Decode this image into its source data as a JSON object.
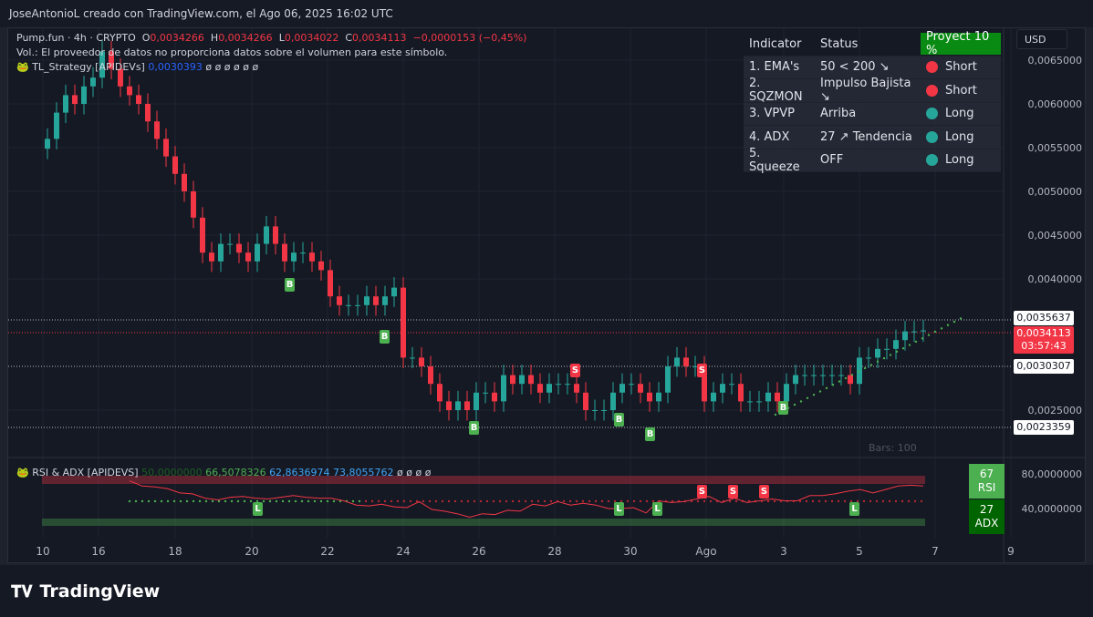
{
  "header": {
    "text": "JoseAntonioL creado con TradingView.com, el Ago 06, 2025 16:02 UTC"
  },
  "legend": {
    "symbol": "Pump.fun · 4h · CRYPTO",
    "o_label": "O",
    "o": "0,0034266",
    "h_label": "H",
    "h": "0,0034266",
    "l_label": "L",
    "l": "0,0034022",
    "c_label": "C",
    "c": "0,0034113",
    "change": "−0,0000153 (−0,45%)",
    "vol": "Vol.: El proveedor de datos no proporciona datos sobre el volumen para este símbolo.",
    "strategy": "TL_Strategy [APIDEVs]",
    "strategy_value": "0,0030393",
    "strategy_extra": "ø ø ø ø ø ø"
  },
  "table": {
    "headers": [
      "Indicator",
      "Status",
      "Proyect 10 %"
    ],
    "rows": [
      {
        "indicator": "1. EMA's",
        "status": "50 < 200 ↘",
        "signal": "Short",
        "color": "#f23645"
      },
      {
        "indicator": "2. SQZMON",
        "status": "Impulso Bajista ↘",
        "signal": "Short",
        "color": "#f23645"
      },
      {
        "indicator": "3. VPVP",
        "status": "Arriba",
        "signal": "Long",
        "color": "#26a69a"
      },
      {
        "indicator": "4. ADX",
        "status": "27 ↗ Tendencia",
        "signal": "Long",
        "color": "#26a69a"
      },
      {
        "indicator": "5. Squeeze",
        "status": "OFF",
        "signal": "Long",
        "color": "#26a69a"
      }
    ]
  },
  "currency": "USD",
  "price_axis": [
    "0,0065000",
    "0,0060000",
    "0,0055000",
    "0,0050000",
    "0,0045000",
    "0,0040000",
    "0,0025000"
  ],
  "price_labels": {
    "upper": "0,0035637",
    "current": "0,0034113",
    "countdown": "03:57:43",
    "mid": "0,0030307",
    "lower": "0,0023359"
  },
  "bars_text": "Bars: 100",
  "markers": {
    "buy": "B",
    "sell": "S",
    "long": "L"
  },
  "rsi_panel": {
    "title": "RSI & ADX [APIDEVS]",
    "v1": "50,0000000",
    "v2": "66,5078326",
    "v3": "62,8636974",
    "v4": "73,8055762",
    "extra": "ø ø ø ø",
    "axis": [
      "80,0000000",
      "40,0000000"
    ],
    "rsi_value": "67",
    "rsi_label": "RSI",
    "adx_value": "27",
    "adx_label": "ADX",
    "rsi": [
      72,
      66,
      65,
      63,
      58,
      57,
      52,
      50,
      53,
      54,
      52,
      51,
      53,
      55,
      53,
      52,
      52,
      49,
      44,
      43,
      45,
      42,
      41,
      48,
      39,
      37,
      34,
      30,
      34,
      33,
      38,
      37,
      45,
      43,
      48,
      44,
      46,
      44,
      40,
      40,
      41,
      35,
      49,
      47,
      48,
      51,
      54,
      47,
      52,
      47,
      49,
      51,
      49,
      49,
      55,
      55,
      57,
      60,
      62,
      58,
      62,
      66,
      67,
      66
    ]
  },
  "x_axis": [
    "10",
    "16",
    "18",
    "20",
    "22",
    "24",
    "26",
    "28",
    "30",
    "Ago",
    "3",
    "5",
    "7",
    "9"
  ],
  "brand": "TradingView",
  "colors": {
    "up": "#26a69a",
    "down": "#f23645",
    "bg": "#151924"
  },
  "chart_data": {
    "type": "candlestick",
    "closes": [
      0.0056,
      0.0059,
      0.0061,
      0.006,
      0.0062,
      0.0063,
      0.0066,
      0.0064,
      0.0062,
      0.0061,
      0.006,
      0.0058,
      0.0056,
      0.0054,
      0.0052,
      0.005,
      0.0047,
      0.0043,
      0.0042,
      0.0044,
      0.0044,
      0.0043,
      0.0042,
      0.0044,
      0.0046,
      0.0044,
      0.0042,
      0.0043,
      0.0043,
      0.0042,
      0.0041,
      0.0038,
      0.0037,
      0.0037,
      0.0037,
      0.0038,
      0.0037,
      0.0038,
      0.0039,
      0.0031,
      0.0031,
      0.003,
      0.0028,
      0.0026,
      0.0025,
      0.0026,
      0.0025,
      0.0027,
      0.0027,
      0.0026,
      0.0029,
      0.0028,
      0.0029,
      0.0028,
      0.0027,
      0.0028,
      0.0028,
      0.0028,
      0.0027,
      0.0025,
      0.0025,
      0.0025,
      0.0027,
      0.0028,
      0.0028,
      0.0027,
      0.0026,
      0.0027,
      0.003,
      0.0031,
      0.003,
      0.003,
      0.0026,
      0.0027,
      0.0028,
      0.0028,
      0.0026,
      0.0026,
      0.0026,
      0.0027,
      0.0026,
      0.0028,
      0.0029,
      0.0029,
      0.0029,
      0.0029,
      0.0029,
      0.0029,
      0.0028,
      0.0031,
      0.0031,
      0.0032,
      0.0032,
      0.0033,
      0.0034,
      0.0034,
      0.0034113
    ],
    "ylim": [
      0.0022,
      0.0067
    ]
  }
}
